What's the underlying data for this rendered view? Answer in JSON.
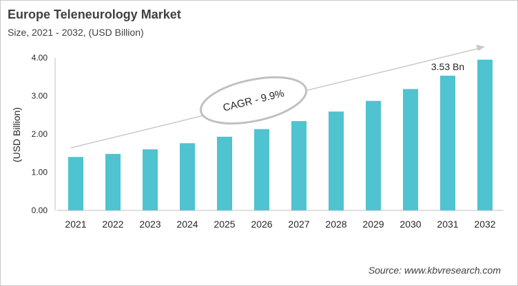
{
  "chart_data": {
    "type": "bar",
    "title": "Europe Teleneurology Market",
    "subtitle": "Size, 2021 - 2032, (USD Billion)",
    "xlabel": "",
    "ylabel": "(USD Billion)",
    "ylim": [
      0,
      4
    ],
    "yticks": [
      "0.00",
      "1.00",
      "2.00",
      "3.00",
      "4.00"
    ],
    "categories": [
      "2021",
      "2022",
      "2023",
      "2024",
      "2025",
      "2026",
      "2027",
      "2028",
      "2029",
      "2030",
      "2031",
      "2032"
    ],
    "values": [
      1.4,
      1.48,
      1.6,
      1.76,
      1.93,
      2.13,
      2.34,
      2.59,
      2.87,
      3.18,
      3.53,
      3.95
    ],
    "bar_color": "#4fc3cf",
    "grid": false,
    "annotations": {
      "cagr": "CAGR - 9.9%",
      "value_label": "3.53 Bn"
    },
    "source": "Source: www.kbvresearch.com"
  }
}
